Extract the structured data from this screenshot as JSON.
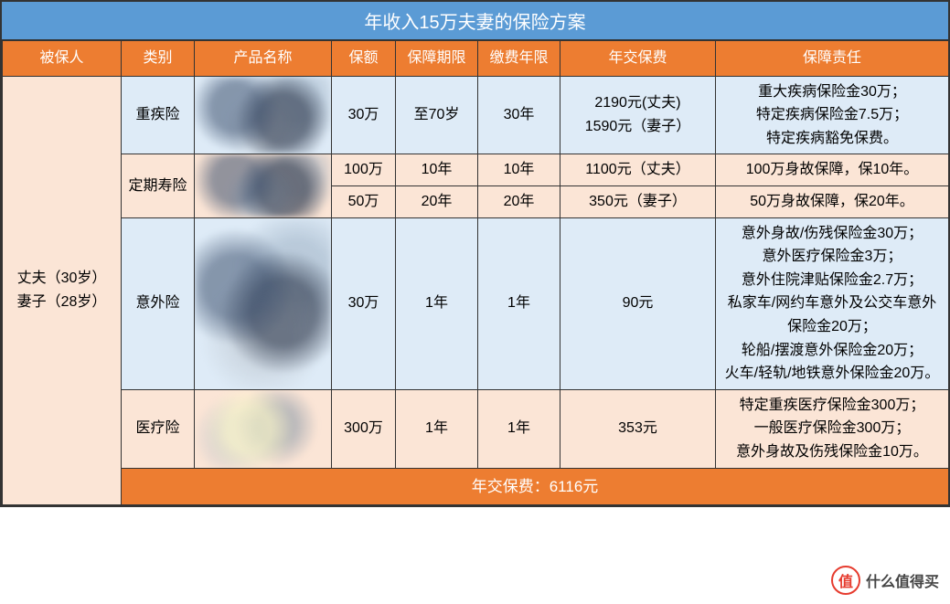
{
  "title": "年收入15万夫妻的保险方案",
  "columns": {
    "insured": "被保人",
    "category": "类别",
    "product": "产品名称",
    "amount": "保额",
    "period": "保障期限",
    "paytime": "缴费年限",
    "premium": "年交保费",
    "duty": "保障责任"
  },
  "insured_label": "丈夫（30岁）\n妻子（28岁）",
  "rows": [
    {
      "category": "重疾险",
      "amount": "30万",
      "period": "至70岁",
      "paytime": "30年",
      "premium": "2190元(丈夫)\n1590元（妻子）",
      "duty": "重大疾病保险金30万；\n特定疾病保险金7.5万；\n特定疾病豁免保费。"
    },
    {
      "category": "定期寿险",
      "sub": [
        {
          "amount": "100万",
          "period": "10年",
          "paytime": "10年",
          "premium": "1100元（丈夫）",
          "duty": "100万身故保障，保10年。"
        },
        {
          "amount": "50万",
          "period": "20年",
          "paytime": "20年",
          "premium": "350元（妻子）",
          "duty": "50万身故保障，保20年。"
        }
      ]
    },
    {
      "category": "意外险",
      "amount": "30万",
      "period": "1年",
      "paytime": "1年",
      "premium": "90元",
      "duty": "意外身故/伤残保险金30万；\n意外医疗保险金3万；\n意外住院津贴保险金2.7万；\n私家车/网约车意外及公交车意外保险金20万；\n轮船/摆渡意外保险金20万；\n火车/轻轨/地铁意外保险金20万。"
    },
    {
      "category": "医疗险",
      "amount": "300万",
      "period": "1年",
      "paytime": "1年",
      "premium": "353元",
      "duty": "特定重疾医疗保险金300万；\n一般医疗保险金300万；\n意外身故及伤残保险金10万。"
    }
  ],
  "footer": "年交保费：6116元",
  "watermark": {
    "badge": "值",
    "text": "什么值得买"
  },
  "colors": {
    "header_blue": "#5b9bd5",
    "header_orange": "#ed7d31",
    "row_blue": "#deebf7",
    "row_peach": "#fbe5d6",
    "border": "#333333"
  }
}
